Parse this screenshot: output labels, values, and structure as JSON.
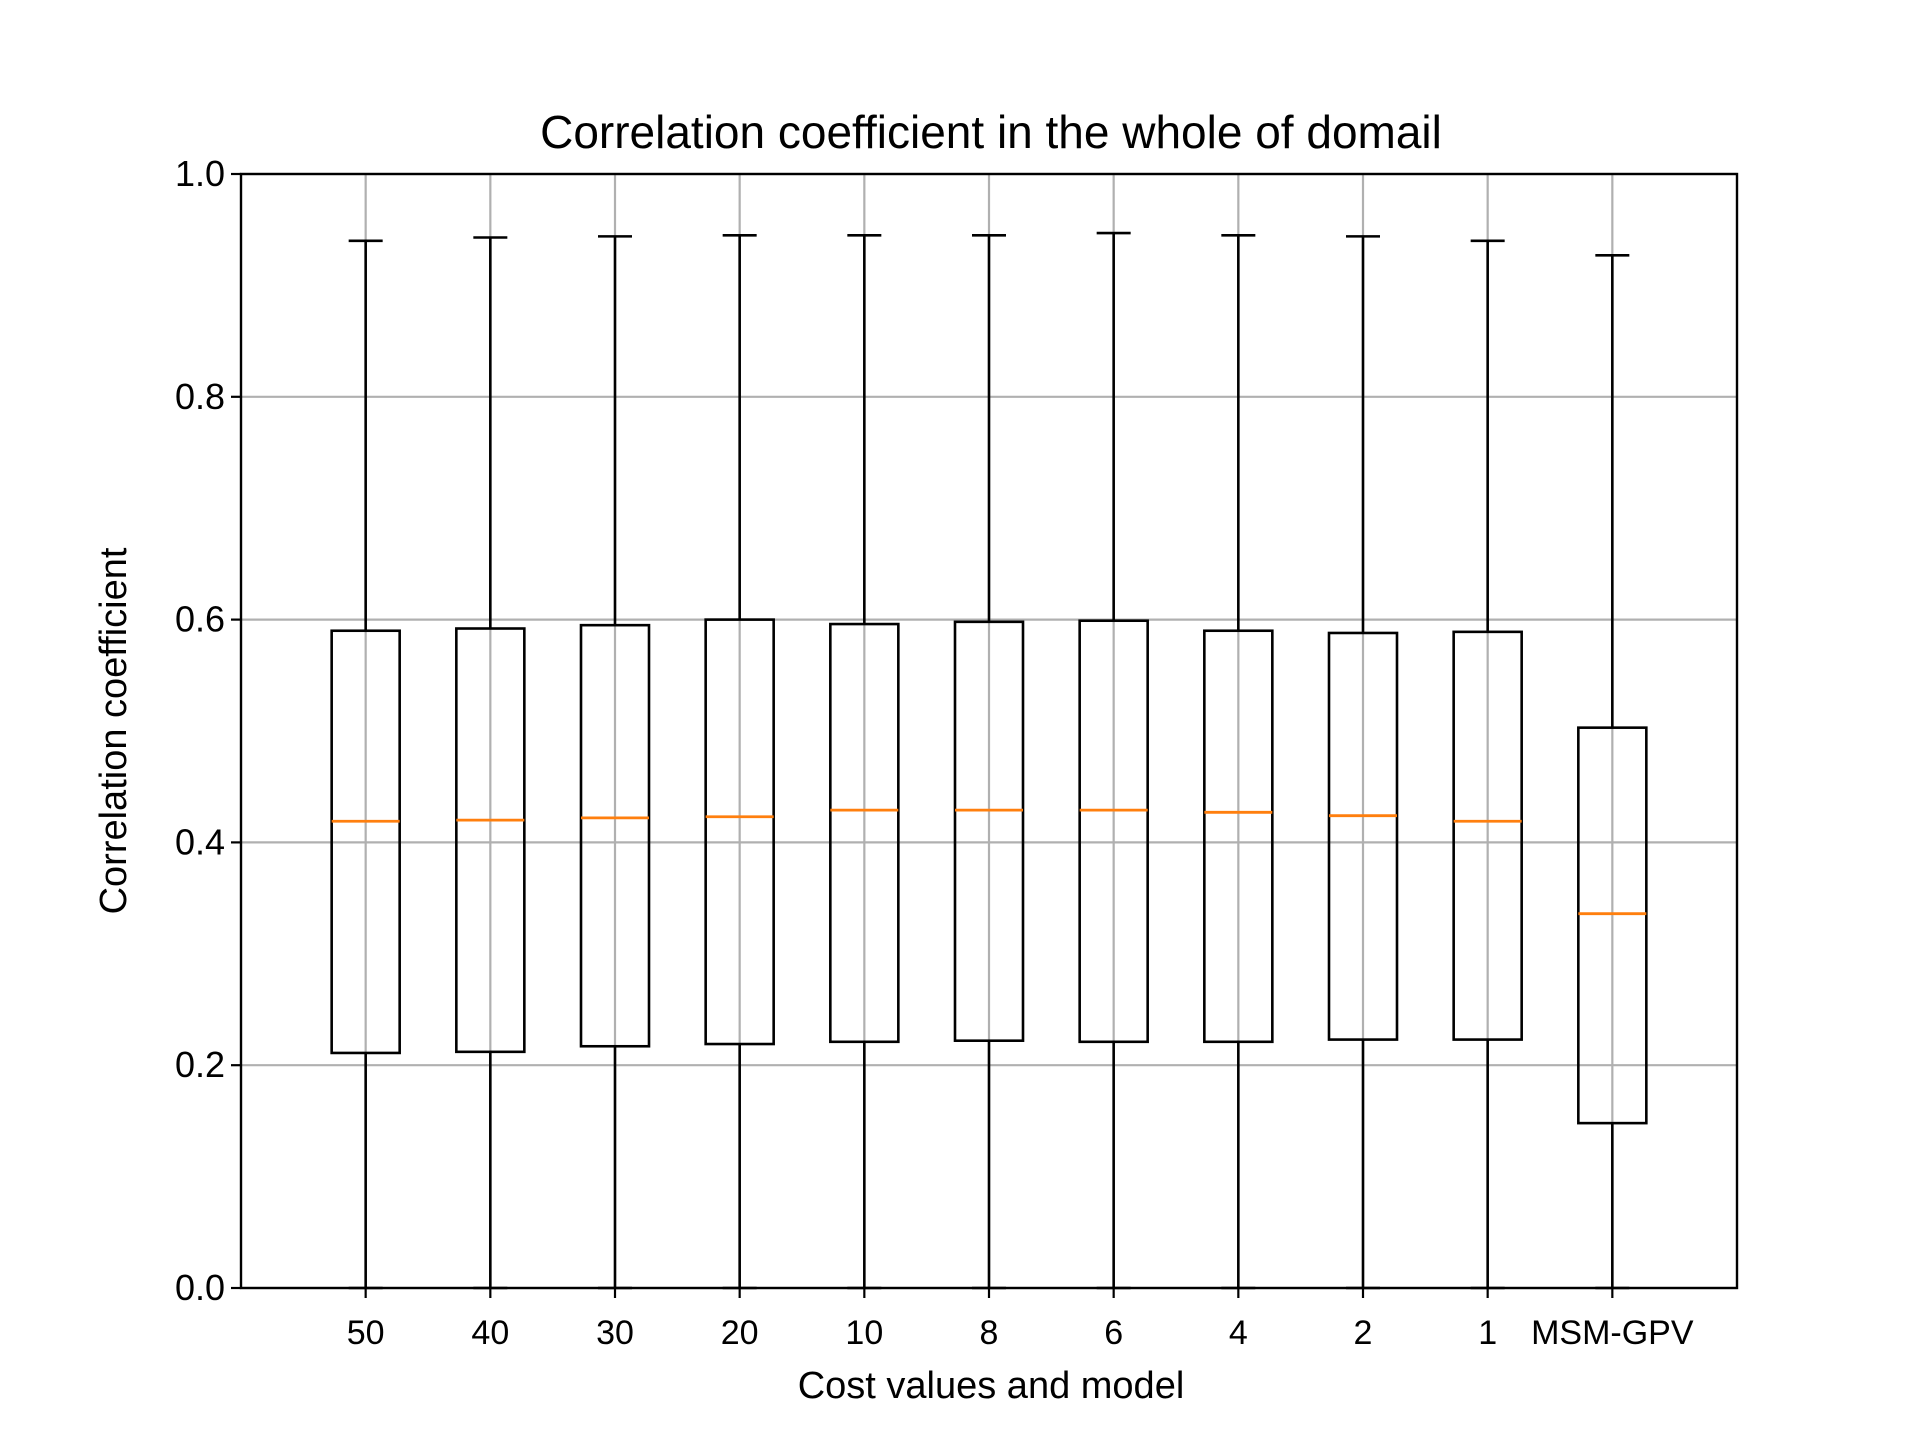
{
  "chart_data": {
    "type": "boxplot",
    "title": "Correlation coefficient in the whole of domail",
    "xlabel": "Cost values and model",
    "ylabel": "Correlation coefficient",
    "ylim": [
      0.0,
      1.0
    ],
    "yticks": [
      "0.0",
      "0.2",
      "0.4",
      "0.6",
      "0.8",
      "1.0"
    ],
    "grid": true,
    "median_color": "#ff7f0e",
    "box_color": "#000000",
    "grid_color": "#b0b0b0",
    "categories": [
      "50",
      "40",
      "30",
      "20",
      "10",
      "8",
      "6",
      "4",
      "2",
      "1",
      "MSM-GPV"
    ],
    "boxes": [
      {
        "label": "50",
        "min": 0.0,
        "q1": 0.211,
        "median": 0.419,
        "q3": 0.59,
        "max": 0.94
      },
      {
        "label": "40",
        "min": 0.0,
        "q1": 0.212,
        "median": 0.42,
        "q3": 0.592,
        "max": 0.943
      },
      {
        "label": "30",
        "min": 0.0,
        "q1": 0.217,
        "median": 0.422,
        "q3": 0.595,
        "max": 0.944
      },
      {
        "label": "20",
        "min": 0.0,
        "q1": 0.219,
        "median": 0.423,
        "q3": 0.6,
        "max": 0.945
      },
      {
        "label": "10",
        "min": 0.0,
        "q1": 0.221,
        "median": 0.429,
        "q3": 0.596,
        "max": 0.945
      },
      {
        "label": "8",
        "min": 0.0,
        "q1": 0.222,
        "median": 0.429,
        "q3": 0.598,
        "max": 0.945
      },
      {
        "label": "6",
        "min": 0.0,
        "q1": 0.221,
        "median": 0.429,
        "q3": 0.599,
        "max": 0.947
      },
      {
        "label": "4",
        "min": 0.0,
        "q1": 0.221,
        "median": 0.427,
        "q3": 0.59,
        "max": 0.945
      },
      {
        "label": "2",
        "min": 0.0,
        "q1": 0.223,
        "median": 0.424,
        "q3": 0.588,
        "max": 0.944
      },
      {
        "label": "1",
        "min": 0.0,
        "q1": 0.223,
        "median": 0.419,
        "q3": 0.589,
        "max": 0.94
      },
      {
        "label": "MSM-GPV",
        "min": 0.0,
        "q1": 0.148,
        "median": 0.336,
        "q3": 0.503,
        "max": 0.927
      }
    ]
  }
}
